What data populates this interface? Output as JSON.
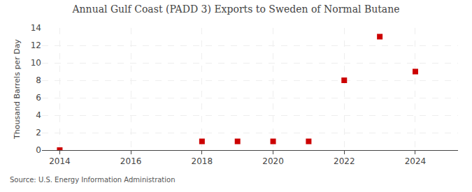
{
  "chart_data": {
    "type": "scatter",
    "title": "Annual Gulf Coast (PADD 3) Exports to Sweden of Normal Butane",
    "ylabel": "Thousand Barrels per Day",
    "annotations": [
      "Source: U.S. Energy Information Administration"
    ],
    "x": [
      2014,
      2018,
      2019,
      2020,
      2021,
      2022,
      2023,
      2024
    ],
    "values": [
      0,
      1,
      1,
      1,
      1,
      8,
      13,
      9
    ],
    "color": "#cc0000",
    "marker": "square",
    "xlim": [
      2013.5,
      2025.2
    ],
    "xticks": [
      2014,
      2016,
      2018,
      2020,
      2022,
      2024
    ],
    "ylim": [
      0,
      14
    ],
    "yticks": [
      0,
      2,
      4,
      6,
      8,
      10,
      12,
      14
    ],
    "grid": true
  }
}
